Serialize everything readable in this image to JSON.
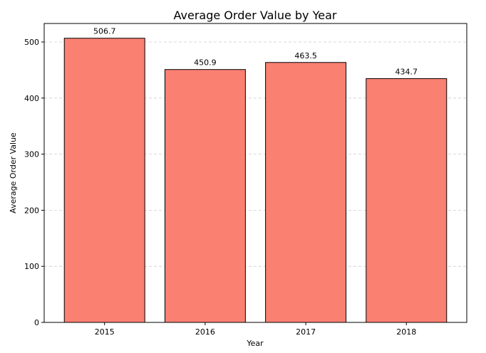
{
  "chart_data": {
    "type": "bar",
    "title": "Average Order Value by Year",
    "xlabel": "Year",
    "ylabel": "Average Order Value",
    "categories": [
      "2015",
      "2016",
      "2017",
      "2018"
    ],
    "values": [
      506.7,
      450.9,
      463.5,
      434.7
    ],
    "value_labels": [
      "506.7",
      "450.9",
      "463.5",
      "434.7"
    ],
    "ylim": [
      0,
      533
    ],
    "yticks": [
      0,
      100,
      200,
      300,
      400,
      500
    ],
    "ytick_labels": [
      "0",
      "100",
      "200",
      "300",
      "400",
      "500"
    ],
    "grid": "y-dashed",
    "bar_color": "#fa8072",
    "edge_color": "#000000"
  }
}
